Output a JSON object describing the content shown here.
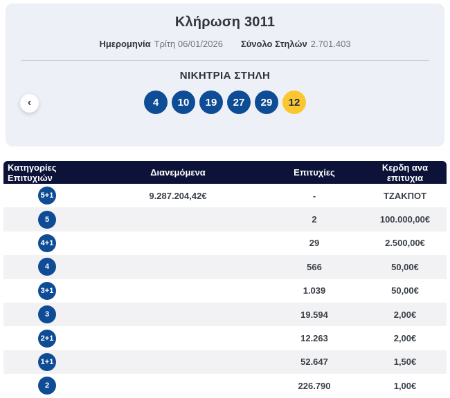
{
  "draw": {
    "title": "Κλήρωση 3011",
    "date_label": "Ημερομηνία",
    "date_value": "Τρίτη 06/01/2026",
    "total_label": "Σύνολο Στηλών",
    "total_value": "2.701.403"
  },
  "winning": {
    "heading": "ΝΙΚΗΤΡΙΑ ΣΤΗΛΗ",
    "numbers": [
      "4",
      "10",
      "19",
      "27",
      "29"
    ],
    "bonus": "12"
  },
  "icons": {
    "chevron_left": "‹"
  },
  "colors": {
    "ball_blue": "#0f4c96",
    "ball_yellow": "#fcc72e",
    "header_navy": "#0c1238",
    "row_alt": "#f2f2f5",
    "card_bg": "#edf0f6"
  },
  "table": {
    "headers": [
      "Κατηγορίες Επιτυχιών",
      "Διανεμόμενα",
      "Επιτυχίες",
      "Κερδη ανα επιτυχια"
    ],
    "rows": [
      {
        "category": "5+1",
        "distributed": "9.287.204,42€",
        "winners": "-",
        "prize": "ΤΖΑΚΠΟΤ"
      },
      {
        "category": "5",
        "distributed": "",
        "winners": "2",
        "prize": "100.000,00€"
      },
      {
        "category": "4+1",
        "distributed": "",
        "winners": "29",
        "prize": "2.500,00€"
      },
      {
        "category": "4",
        "distributed": "",
        "winners": "566",
        "prize": "50,00€"
      },
      {
        "category": "3+1",
        "distributed": "",
        "winners": "1.039",
        "prize": "50,00€"
      },
      {
        "category": "3",
        "distributed": "",
        "winners": "19.594",
        "prize": "2,00€"
      },
      {
        "category": "2+1",
        "distributed": "",
        "winners": "12.263",
        "prize": "2,00€"
      },
      {
        "category": "1+1",
        "distributed": "",
        "winners": "52.647",
        "prize": "1,50€"
      },
      {
        "category": "2",
        "distributed": "",
        "winners": "226.790",
        "prize": "1,00€"
      }
    ]
  }
}
